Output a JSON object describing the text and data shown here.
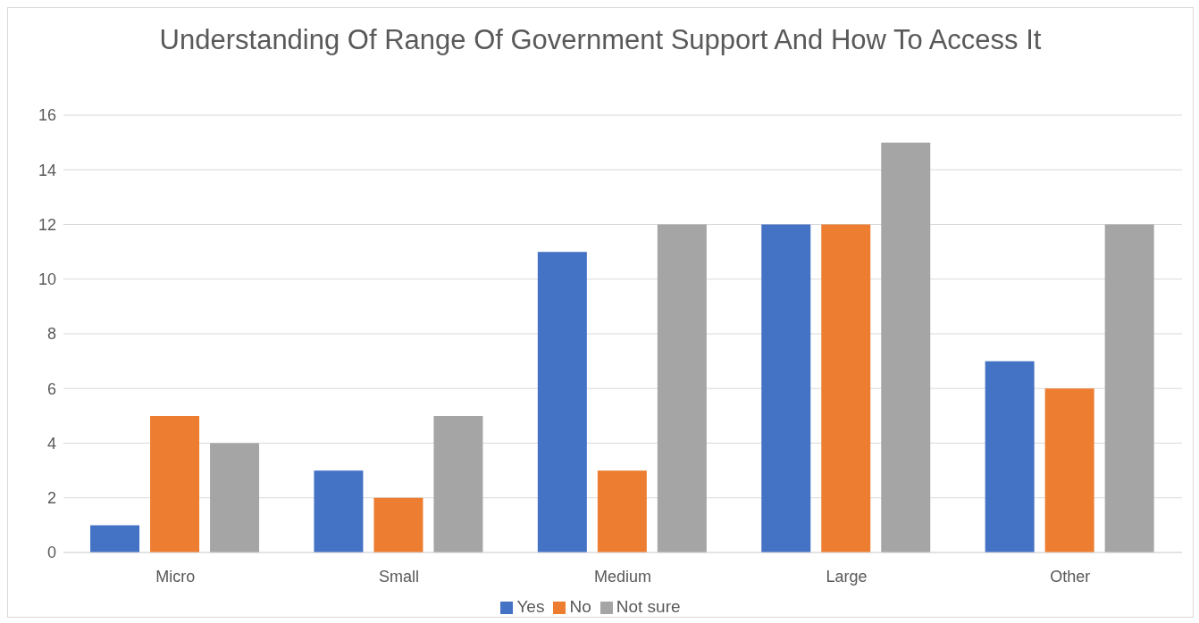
{
  "chart_data": {
    "type": "bar",
    "title": "Understanding Of Range Of Government Support And How To Access It",
    "categories": [
      "Micro",
      "Small",
      "Medium",
      "Large",
      "Other"
    ],
    "series": [
      {
        "name": "Yes",
        "color": "#4472c4",
        "values": [
          1,
          3,
          11,
          12,
          7
        ]
      },
      {
        "name": "No",
        "color": "#ed7d31",
        "values": [
          5,
          2,
          3,
          12,
          6
        ]
      },
      {
        "name": "Not sure",
        "color": "#a5a5a5",
        "values": [
          4,
          5,
          12,
          15,
          12
        ]
      }
    ],
    "ylim": [
      0,
      16
    ],
    "yticks": [
      0,
      2,
      4,
      6,
      8,
      10,
      12,
      14,
      16
    ],
    "grid": "y",
    "legend": "bottom"
  }
}
